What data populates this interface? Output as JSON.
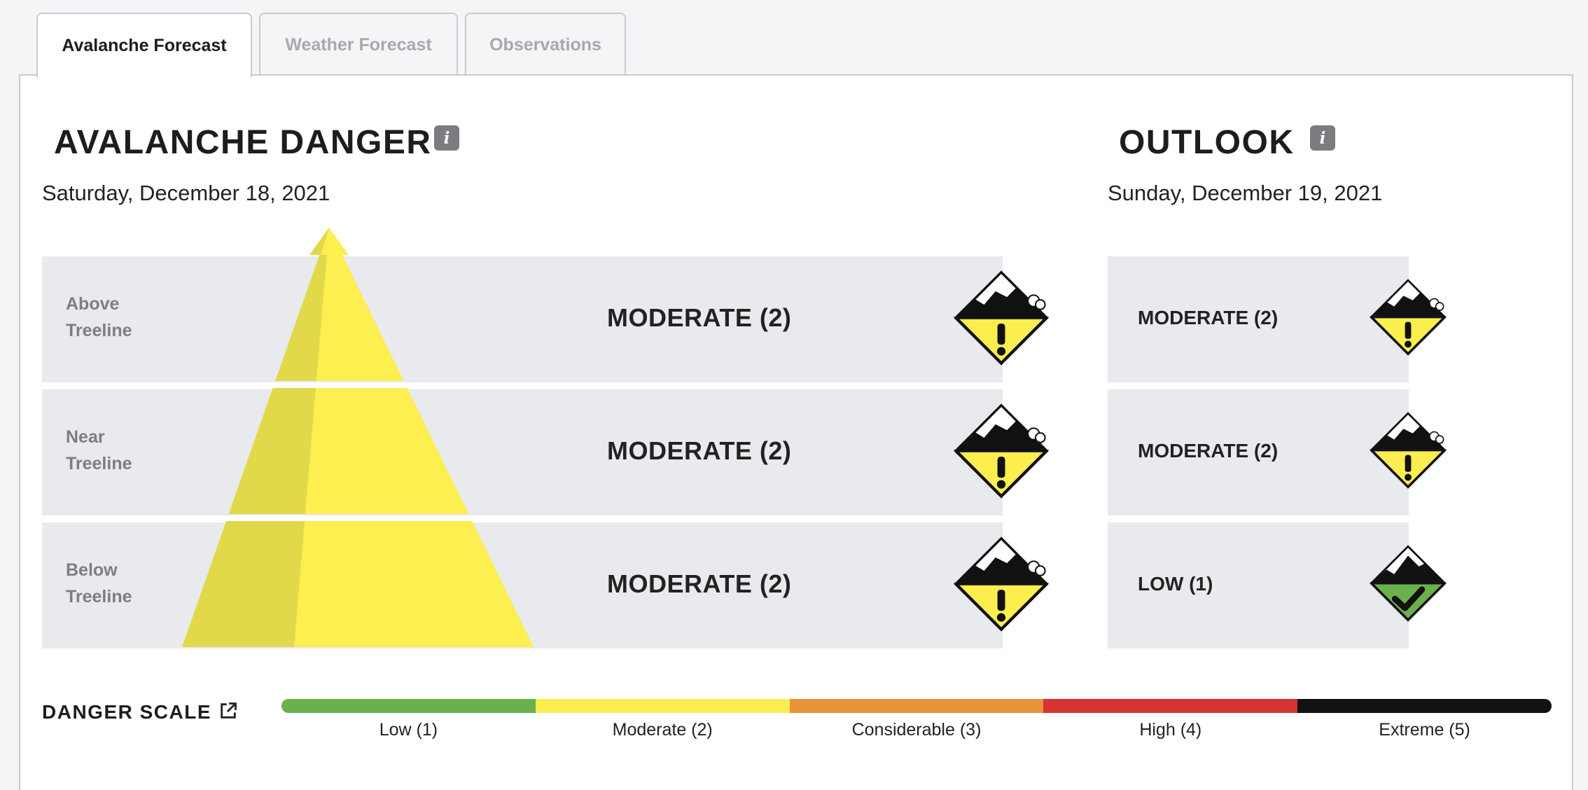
{
  "tabs": [
    {
      "label": "Avalanche Forecast",
      "active": true
    },
    {
      "label": "Weather Forecast",
      "active": false
    },
    {
      "label": "Observations",
      "active": false
    }
  ],
  "danger": {
    "title": "AVALANCHE DANGER",
    "info_label": "i",
    "date": "Saturday, December 18, 2021",
    "rows": [
      {
        "elevation": "Above\nTreeline",
        "level": "MODERATE (2)",
        "icon": "moderate-danger-icon"
      },
      {
        "elevation": "Near\nTreeline",
        "level": "MODERATE (2)",
        "icon": "moderate-danger-icon"
      },
      {
        "elevation": "Below\nTreeline",
        "level": "MODERATE (2)",
        "icon": "moderate-danger-icon"
      }
    ]
  },
  "outlook": {
    "title": "OUTLOOK",
    "info_label": "i",
    "date": "Sunday, December 19, 2021",
    "rows": [
      {
        "level": "MODERATE (2)",
        "icon": "moderate-danger-icon"
      },
      {
        "level": "MODERATE (2)",
        "icon": "moderate-danger-icon"
      },
      {
        "level": "LOW (1)",
        "icon": "low-danger-icon"
      }
    ]
  },
  "scale": {
    "title": "DANGER SCALE",
    "icon": "external-link-icon",
    "levels": [
      {
        "label": "Low (1)",
        "color": "#6ab04c"
      },
      {
        "label": "Moderate (2)",
        "color": "#fcee4f"
      },
      {
        "label": "Considerable (3)",
        "color": "#e8923a"
      },
      {
        "label": "High (4)",
        "color": "#d63333"
      },
      {
        "label": "Extreme (5)",
        "color": "#111111"
      }
    ]
  },
  "colors": {
    "pyramid_light": "#fcef4f",
    "pyramid_shade": "#e1d84a",
    "row_bg": "#e8eaed"
  }
}
